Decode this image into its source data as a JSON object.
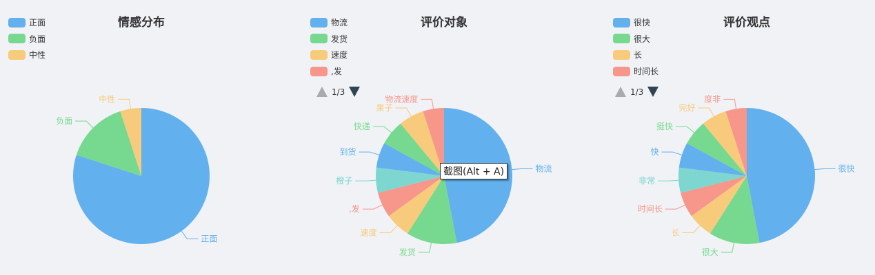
{
  "tooltip": "截图(Alt + A)",
  "charts": [
    {
      "title": "情感分布",
      "pager": null
    },
    {
      "title": "评价对象",
      "pager": "1/3"
    },
    {
      "title": "评价观点",
      "pager": "1/3"
    }
  ],
  "chart_data": [
    {
      "type": "pie",
      "title": "情感分布",
      "legend": [
        "正面",
        "负面",
        "中性"
      ],
      "slices": [
        {
          "name": "正面",
          "value": 80,
          "color": "#62b1ee"
        },
        {
          "name": "负面",
          "value": 15,
          "color": "#76d98f"
        },
        {
          "name": "中性",
          "value": 5,
          "color": "#f8ca7b"
        }
      ]
    },
    {
      "type": "pie",
      "title": "评价对象",
      "legend": [
        "物流",
        "发货",
        "速度",
        ",发"
      ],
      "slices": [
        {
          "name": "物流",
          "value": 47,
          "color": "#62b1ee"
        },
        {
          "name": "发货",
          "value": 12,
          "color": "#76d98f"
        },
        {
          "name": "速度",
          "value": 6,
          "color": "#f8ca7b"
        },
        {
          "name": ",发",
          "value": 6,
          "color": "#f7968a"
        },
        {
          "name": "橙子",
          "value": 6,
          "color": "#7dd6cf"
        },
        {
          "name": "到货",
          "value": 6,
          "color": "#62b1ee"
        },
        {
          "name": "快递",
          "value": 6,
          "color": "#76d98f"
        },
        {
          "name": "果子",
          "value": 6,
          "color": "#f8ca7b"
        },
        {
          "name": "物流速度",
          "value": 5,
          "color": "#f7968a"
        }
      ]
    },
    {
      "type": "pie",
      "title": "评价观点",
      "legend": [
        "很快",
        "很大",
        "长",
        "时间长"
      ],
      "slices": [
        {
          "name": "很快",
          "value": 47,
          "color": "#62b1ee"
        },
        {
          "name": "很大",
          "value": 12,
          "color": "#76d98f"
        },
        {
          "name": "长",
          "value": 6,
          "color": "#f8ca7b"
        },
        {
          "name": "时间长",
          "value": 6,
          "color": "#f7968a"
        },
        {
          "name": "非常",
          "value": 6,
          "color": "#7dd6cf"
        },
        {
          "name": "快",
          "value": 6,
          "color": "#62b1ee"
        },
        {
          "name": "挺快",
          "value": 6,
          "color": "#76d98f"
        },
        {
          "name": "完好",
          "value": 6,
          "color": "#f8ca7b"
        },
        {
          "name": "度非",
          "value": 5,
          "color": "#f7968a"
        }
      ]
    }
  ]
}
